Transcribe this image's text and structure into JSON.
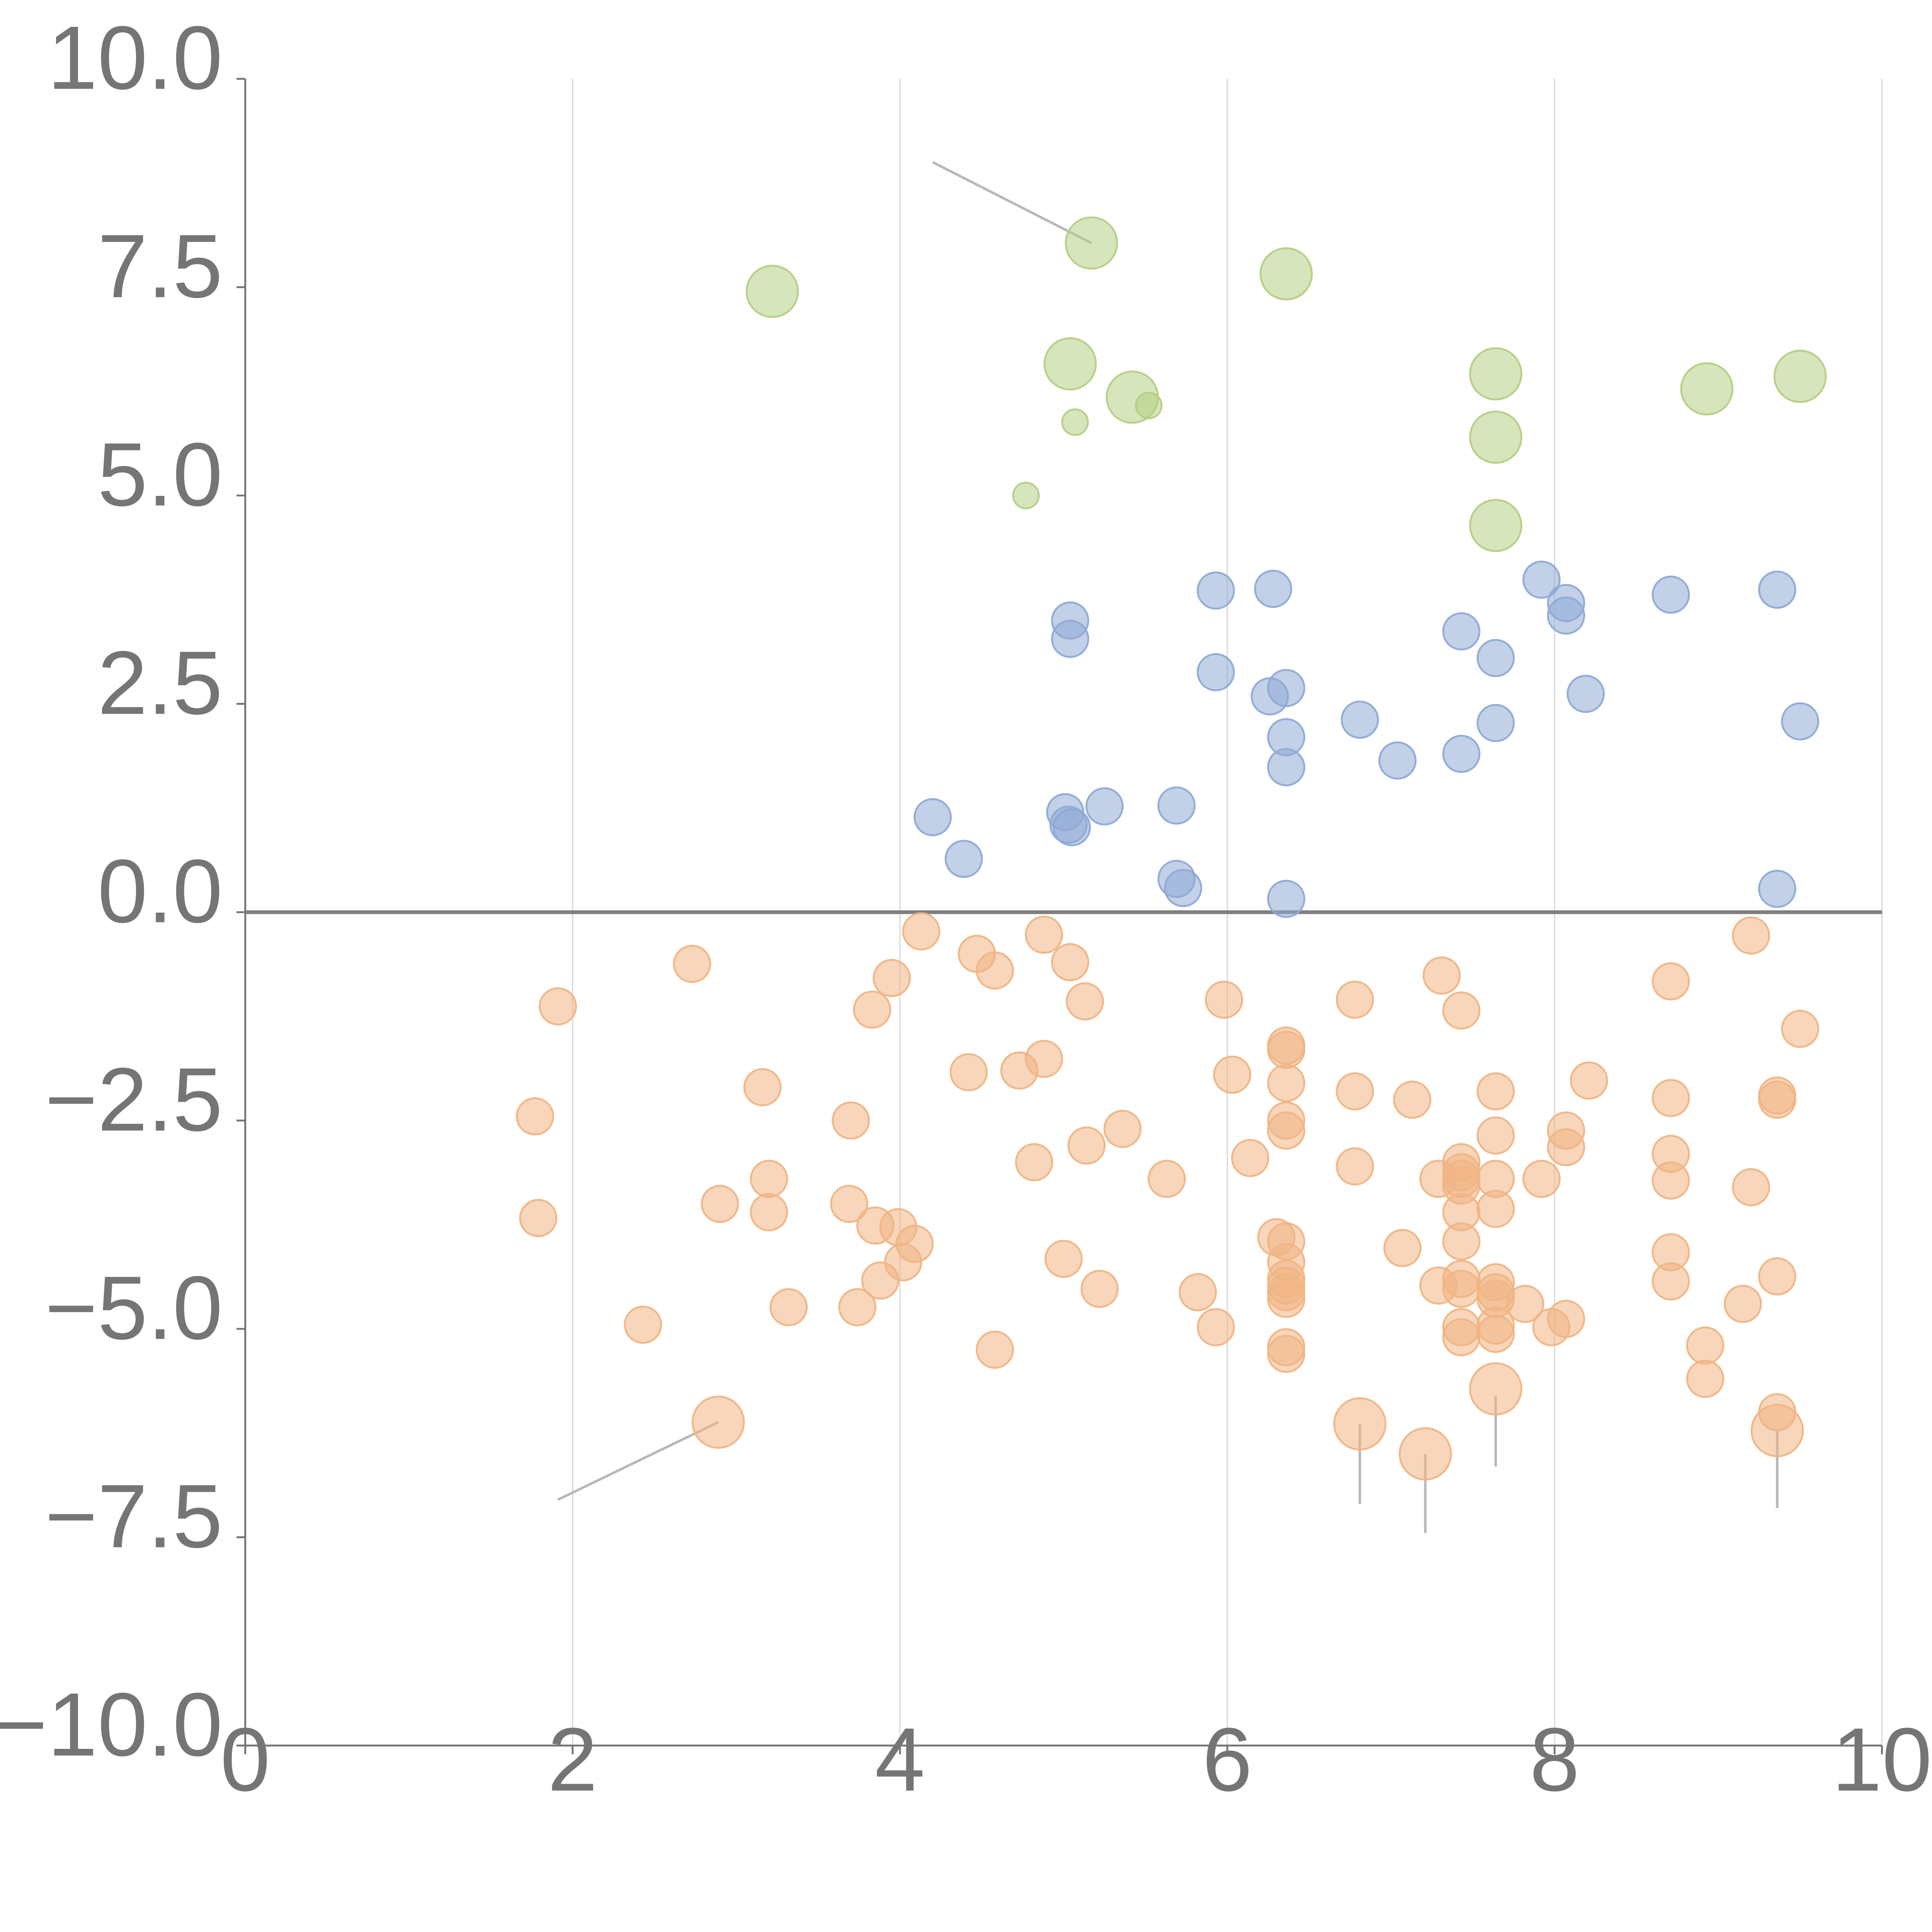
{
  "chart_data": {
    "type": "scatter",
    "title": "",
    "xlabel": "",
    "ylabel": "",
    "xlim": [
      0,
      10
    ],
    "ylim": [
      -10,
      10
    ],
    "x_ticks": [
      0,
      2,
      4,
      6,
      8,
      10
    ],
    "x_tick_labels": [
      "0",
      "2",
      "4",
      "6",
      "8",
      "10"
    ],
    "y_ticks": [
      10,
      7.5,
      5,
      2.5,
      0,
      -2.5,
      -5,
      -7.5,
      -10
    ],
    "y_tick_labels": [
      "10.0",
      "7.5",
      "5.0",
      "2.5",
      "0.0",
      "−2.5",
      "−5.0",
      "−7.5",
      "−10.0"
    ],
    "grid": "vertical",
    "zero_line": true,
    "series": [
      {
        "color": "#b5cf84",
        "points": [
          {
            "x": 3.22,
            "y": 7.45,
            "size": 2
          },
          {
            "x": 5.17,
            "y": 8.03,
            "size": 2
          },
          {
            "x": 6.36,
            "y": 7.66,
            "size": 2
          },
          {
            "x": 5.04,
            "y": 6.58,
            "size": 2
          },
          {
            "x": 5.42,
            "y": 6.18,
            "size": 2
          },
          {
            "x": 5.52,
            "y": 6.08,
            "size": 0.5
          },
          {
            "x": 5.07,
            "y": 5.88,
            "size": 0.5
          },
          {
            "x": 4.77,
            "y": 5.0,
            "size": 0.5
          },
          {
            "x": 7.64,
            "y": 6.46,
            "size": 2
          },
          {
            "x": 7.64,
            "y": 5.7,
            "size": 2
          },
          {
            "x": 7.64,
            "y": 4.64,
            "size": 2
          },
          {
            "x": 8.93,
            "y": 6.28,
            "size": 2
          },
          {
            "x": 9.5,
            "y": 6.43,
            "size": 2
          }
        ]
      },
      {
        "color": "#8faad6",
        "points": [
          {
            "x": 4.2,
            "y": 1.14
          },
          {
            "x": 4.39,
            "y": 0.64
          },
          {
            "x": 5.01,
            "y": 1.2
          },
          {
            "x": 5.03,
            "y": 1.05
          },
          {
            "x": 5.05,
            "y": 1.02
          },
          {
            "x": 5.25,
            "y": 1.27
          },
          {
            "x": 5.04,
            "y": 3.5
          },
          {
            "x": 5.04,
            "y": 3.28
          },
          {
            "x": 5.69,
            "y": 1.28
          },
          {
            "x": 5.69,
            "y": 0.4
          },
          {
            "x": 5.73,
            "y": 0.29
          },
          {
            "x": 5.93,
            "y": 3.86
          },
          {
            "x": 5.93,
            "y": 2.88
          },
          {
            "x": 6.28,
            "y": 3.88
          },
          {
            "x": 6.26,
            "y": 2.59
          },
          {
            "x": 6.36,
            "y": 2.69
          },
          {
            "x": 6.36,
            "y": 2.1
          },
          {
            "x": 6.36,
            "y": 1.74
          },
          {
            "x": 6.36,
            "y": 0.16
          },
          {
            "x": 6.81,
            "y": 2.31
          },
          {
            "x": 7.04,
            "y": 1.82
          },
          {
            "x": 7.43,
            "y": 3.37
          },
          {
            "x": 7.43,
            "y": 1.9
          },
          {
            "x": 7.64,
            "y": 3.05
          },
          {
            "x": 7.64,
            "y": 2.27
          },
          {
            "x": 7.92,
            "y": 3.99
          },
          {
            "x": 8.07,
            "y": 3.71
          },
          {
            "x": 8.07,
            "y": 3.56
          },
          {
            "x": 8.19,
            "y": 2.62
          },
          {
            "x": 8.71,
            "y": 3.81
          },
          {
            "x": 9.36,
            "y": 3.87
          },
          {
            "x": 9.5,
            "y": 2.29
          },
          {
            "x": 9.36,
            "y": 0.28
          }
        ]
      },
      {
        "color": "#f0b584",
        "points": [
          {
            "x": 1.91,
            "y": -1.13
          },
          {
            "x": 1.77,
            "y": -2.45
          },
          {
            "x": 1.79,
            "y": -3.67
          },
          {
            "x": 2.43,
            "y": -4.95
          },
          {
            "x": 2.73,
            "y": -0.62
          },
          {
            "x": 2.89,
            "y": -6.12,
            "size": 2
          },
          {
            "x": 2.9,
            "y": -3.5
          },
          {
            "x": 3.16,
            "y": -2.1
          },
          {
            "x": 3.2,
            "y": -3.2
          },
          {
            "x": 3.2,
            "y": -3.6
          },
          {
            "x": 3.32,
            "y": -4.74
          },
          {
            "x": 3.7,
            "y": -2.5
          },
          {
            "x": 3.69,
            "y": -3.5
          },
          {
            "x": 3.83,
            "y": -1.17
          },
          {
            "x": 3.85,
            "y": -3.76
          },
          {
            "x": 3.74,
            "y": -4.74
          },
          {
            "x": 3.95,
            "y": -0.79
          },
          {
            "x": 3.99,
            "y": -3.78
          },
          {
            "x": 4.02,
            "y": -4.2
          },
          {
            "x": 3.88,
            "y": -4.42
          },
          {
            "x": 4.09,
            "y": -3.98
          },
          {
            "x": 4.13,
            "y": -0.23
          },
          {
            "x": 4.47,
            "y": -0.5
          },
          {
            "x": 4.58,
            "y": -0.7
          },
          {
            "x": 4.42,
            "y": -1.92
          },
          {
            "x": 4.58,
            "y": -5.25
          },
          {
            "x": 4.73,
            "y": -1.9
          },
          {
            "x": 4.82,
            "y": -3.0
          },
          {
            "x": 4.88,
            "y": -0.27
          },
          {
            "x": 4.88,
            "y": -1.76
          },
          {
            "x": 5.04,
            "y": -0.6
          },
          {
            "x": 5.13,
            "y": -1.07
          },
          {
            "x": 5.0,
            "y": -4.16
          },
          {
            "x": 5.14,
            "y": -2.8
          },
          {
            "x": 5.22,
            "y": -4.52
          },
          {
            "x": 5.36,
            "y": -2.6
          },
          {
            "x": 5.63,
            "y": -3.2
          },
          {
            "x": 5.82,
            "y": -4.56
          },
          {
            "x": 5.93,
            "y": -4.98
          },
          {
            "x": 5.98,
            "y": -1.05
          },
          {
            "x": 6.03,
            "y": -1.95
          },
          {
            "x": 6.14,
            "y": -2.95
          },
          {
            "x": 6.3,
            "y": -3.9
          },
          {
            "x": 6.36,
            "y": -1.6
          },
          {
            "x": 6.36,
            "y": -1.65
          },
          {
            "x": 6.36,
            "y": -2.05
          },
          {
            "x": 6.36,
            "y": -2.5
          },
          {
            "x": 6.36,
            "y": -2.62
          },
          {
            "x": 6.36,
            "y": -3.95
          },
          {
            "x": 6.36,
            "y": -4.2
          },
          {
            "x": 6.36,
            "y": -4.4
          },
          {
            "x": 6.36,
            "y": -4.48
          },
          {
            "x": 6.36,
            "y": -4.56
          },
          {
            "x": 6.36,
            "y": -4.64
          },
          {
            "x": 6.36,
            "y": -5.22
          },
          {
            "x": 6.36,
            "y": -5.3
          },
          {
            "x": 6.78,
            "y": -1.05
          },
          {
            "x": 6.78,
            "y": -2.15
          },
          {
            "x": 6.78,
            "y": -3.05
          },
          {
            "x": 6.81,
            "y": -6.14,
            "size": 2
          },
          {
            "x": 7.07,
            "y": -4.03
          },
          {
            "x": 7.13,
            "y": -2.25
          },
          {
            "x": 7.21,
            "y": -6.5,
            "size": 2
          },
          {
            "x": 7.31,
            "y": -0.76
          },
          {
            "x": 7.29,
            "y": -3.2
          },
          {
            "x": 7.29,
            "y": -4.48
          },
          {
            "x": 7.43,
            "y": -1.18
          },
          {
            "x": 7.43,
            "y": -3.0
          },
          {
            "x": 7.43,
            "y": -3.12
          },
          {
            "x": 7.43,
            "y": -3.2
          },
          {
            "x": 7.43,
            "y": -3.28
          },
          {
            "x": 7.43,
            "y": -3.6
          },
          {
            "x": 7.43,
            "y": -3.95
          },
          {
            "x": 7.43,
            "y": -4.4
          },
          {
            "x": 7.43,
            "y": -4.52
          },
          {
            "x": 7.43,
            "y": -4.98
          },
          {
            "x": 7.43,
            "y": -5.1
          },
          {
            "x": 7.64,
            "y": -2.15
          },
          {
            "x": 7.64,
            "y": -2.68
          },
          {
            "x": 7.64,
            "y": -3.2
          },
          {
            "x": 7.64,
            "y": -3.56
          },
          {
            "x": 7.64,
            "y": -4.44
          },
          {
            "x": 7.64,
            "y": -4.56
          },
          {
            "x": 7.64,
            "y": -4.64
          },
          {
            "x": 7.64,
            "y": -4.96
          },
          {
            "x": 7.64,
            "y": -5.06
          },
          {
            "x": 7.64,
            "y": -5.72,
            "size": 2
          },
          {
            "x": 7.82,
            "y": -4.7
          },
          {
            "x": 7.92,
            "y": -3.2
          },
          {
            "x": 7.98,
            "y": -4.98
          },
          {
            "x": 8.07,
            "y": -2.62
          },
          {
            "x": 8.07,
            "y": -2.82
          },
          {
            "x": 8.07,
            "y": -4.88
          },
          {
            "x": 8.21,
            "y": -2.02
          },
          {
            "x": 8.71,
            "y": -0.83
          },
          {
            "x": 8.71,
            "y": -2.23
          },
          {
            "x": 8.71,
            "y": -2.9
          },
          {
            "x": 8.71,
            "y": -3.22
          },
          {
            "x": 8.71,
            "y": -4.08
          },
          {
            "x": 8.71,
            "y": -4.43
          },
          {
            "x": 8.92,
            "y": -5.2
          },
          {
            "x": 8.92,
            "y": -5.6
          },
          {
            "x": 9.15,
            "y": -4.7
          },
          {
            "x": 9.2,
            "y": -0.28
          },
          {
            "x": 9.2,
            "y": -3.3
          },
          {
            "x": 9.36,
            "y": -2.2
          },
          {
            "x": 9.36,
            "y": -2.25
          },
          {
            "x": 9.36,
            "y": -4.37
          },
          {
            "x": 9.36,
            "y": -6.0
          },
          {
            "x": 9.36,
            "y": -6.22,
            "size": 2
          },
          {
            "x": 9.5,
            "y": -1.4
          }
        ]
      }
    ],
    "leader_lines": [
      {
        "from": [
          4.2,
          9.0
        ],
        "to": [
          5.17,
          8.03
        ],
        "color": "#b8b8b8"
      },
      {
        "from": [
          1.91,
          -7.05
        ],
        "to": [
          2.89,
          -6.12
        ],
        "color": "#b8b8b8"
      },
      {
        "from": [
          6.81,
          -6.14
        ],
        "to": [
          6.81,
          -7.1
        ],
        "color": "#b8b8b8"
      },
      {
        "from": [
          7.21,
          -6.5
        ],
        "to": [
          7.21,
          -7.45
        ],
        "color": "#b8b8b8"
      },
      {
        "from": [
          7.64,
          -5.8
        ],
        "to": [
          7.64,
          -6.65
        ],
        "color": "#b8b8b8"
      },
      {
        "from": [
          9.36,
          -6.22
        ],
        "to": [
          9.36,
          -7.15
        ],
        "color": "#b8b8b8"
      },
      {
        "from": [
          3.22,
          7.45
        ],
        "to": [
          3.45,
          7.75
        ],
        "color": "#ffffff"
      },
      {
        "from": [
          5.04,
          6.58
        ],
        "to": [
          5.3,
          6.88
        ],
        "color": "#ffffff"
      },
      {
        "from": [
          7.64,
          6.46
        ],
        "to": [
          7.9,
          6.76
        ],
        "color": "#ffffff"
      },
      {
        "from": [
          7.64,
          4.64
        ],
        "to": [
          7.95,
          4.4
        ],
        "color": "#ffffff"
      },
      {
        "from": [
          8.93,
          6.28
        ],
        "to": [
          9.05,
          5.9
        ],
        "color": "#ffffff"
      },
      {
        "from": [
          9.5,
          6.43
        ],
        "to": [
          9.47,
          6.8
        ],
        "color": "#ffffff"
      }
    ],
    "colors": {
      "axis": "#757575",
      "grid": "#d9d9d9",
      "zero_line": "#7f7f7f"
    }
  }
}
